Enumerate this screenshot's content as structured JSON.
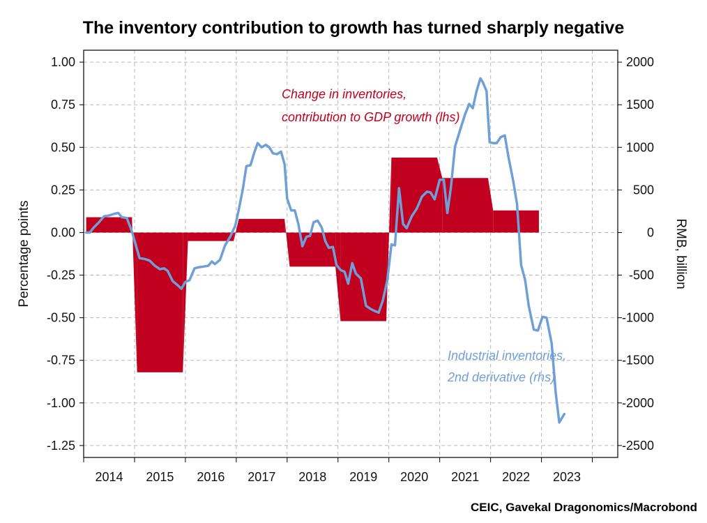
{
  "chart_data": {
    "type": "bar+line",
    "title": "The inventory contribution to growth has turned sharply negative",
    "source": "CEIC, Gavekal Dragonomics/Macrobond",
    "x_ticks": [
      "2014",
      "2015",
      "2016",
      "2017",
      "2018",
      "2019",
      "2020",
      "2021",
      "2022",
      "2023"
    ],
    "y_left": {
      "label": "Percentage points",
      "ylim": [
        -1.32,
        1.07
      ],
      "ticks": [
        1.0,
        0.75,
        0.5,
        0.25,
        0.0,
        -0.25,
        -0.5,
        -0.75,
        -1.0,
        -1.25
      ],
      "tick_labels": [
        "1.00",
        "0.75",
        "0.50",
        "0.25",
        "0.00",
        "-0.25",
        "-0.50",
        "-0.75",
        "-1.00",
        "-1.25"
      ]
    },
    "y_right": {
      "label": "RMB, billion",
      "ylim": [
        -2640,
        2140
      ],
      "ticks": [
        2000,
        1500,
        1000,
        500,
        0,
        -500,
        -1000,
        -1500,
        -2000,
        -2500
      ],
      "tick_labels": [
        "2000",
        "1500",
        "1000",
        "500",
        "0",
        "-500",
        "-1000",
        "-1500",
        "-2000",
        "-2500"
      ]
    },
    "x_domain": [
      2013.0,
      2023.5
    ],
    "series": [
      {
        "name": "Change in inventories, contribution to GDP growth (lhs)",
        "label_lines": [
          "Change in inventories,",
          "contribution to GDP growth (lhs)"
        ],
        "kind": "area",
        "axis": "left",
        "color": "#c0001e",
        "points": [
          [
            2013.05,
            0.09
          ],
          [
            2013.95,
            0.09
          ],
          [
            2014.05,
            -0.82
          ],
          [
            2014.95,
            -0.82
          ],
          [
            2015.05,
            -0.05
          ],
          [
            2015.95,
            -0.05
          ],
          [
            2016.05,
            0.08
          ],
          [
            2016.95,
            0.08
          ],
          [
            2017.05,
            -0.2
          ],
          [
            2017.95,
            -0.2
          ],
          [
            2018.05,
            -0.52
          ],
          [
            2018.95,
            -0.52
          ],
          [
            2019.05,
            0.44
          ],
          [
            2019.95,
            0.44
          ],
          [
            2020.05,
            0.32
          ],
          [
            2020.95,
            0.32
          ],
          [
            2021.05,
            0.13
          ],
          [
            2021.95,
            0.13
          ]
        ]
      },
      {
        "name": "Industrial inventories, 2nd derivative (rhs)",
        "label_lines": [
          "Industrial inventories,",
          "2nd derivative (rhs)"
        ],
        "kind": "line",
        "axis": "right",
        "color": "#6f9fd6",
        "points": [
          [
            2013.05,
            0
          ],
          [
            2013.12,
            0
          ],
          [
            2013.2,
            60
          ],
          [
            2013.3,
            120
          ],
          [
            2013.4,
            190
          ],
          [
            2013.5,
            200
          ],
          [
            2013.6,
            220
          ],
          [
            2013.68,
            230
          ],
          [
            2013.75,
            180
          ],
          [
            2013.85,
            170
          ],
          [
            2013.95,
            10
          ],
          [
            2014.05,
            -200
          ],
          [
            2014.1,
            -300
          ],
          [
            2014.2,
            -310
          ],
          [
            2014.3,
            -330
          ],
          [
            2014.4,
            -390
          ],
          [
            2014.5,
            -430
          ],
          [
            2014.58,
            -420
          ],
          [
            2014.65,
            -450
          ],
          [
            2014.75,
            -570
          ],
          [
            2014.85,
            -620
          ],
          [
            2014.92,
            -660
          ],
          [
            2015.0,
            -580
          ],
          [
            2015.08,
            -560
          ],
          [
            2015.18,
            -420
          ],
          [
            2015.25,
            -410
          ],
          [
            2015.35,
            -400
          ],
          [
            2015.45,
            -390
          ],
          [
            2015.52,
            -340
          ],
          [
            2015.58,
            -370
          ],
          [
            2015.68,
            -320
          ],
          [
            2015.78,
            -150
          ],
          [
            2015.88,
            -50
          ],
          [
            2015.98,
            80
          ],
          [
            2016.05,
            270
          ],
          [
            2016.13,
            510
          ],
          [
            2016.2,
            780
          ],
          [
            2016.28,
            790
          ],
          [
            2016.35,
            930
          ],
          [
            2016.42,
            1050
          ],
          [
            2016.5,
            1000
          ],
          [
            2016.58,
            1030
          ],
          [
            2016.65,
            1000
          ],
          [
            2016.72,
            930
          ],
          [
            2016.8,
            920
          ],
          [
            2016.88,
            950
          ],
          [
            2016.95,
            800
          ],
          [
            2017.0,
            400
          ],
          [
            2017.08,
            260
          ],
          [
            2017.15,
            260
          ],
          [
            2017.22,
            100
          ],
          [
            2017.3,
            -160
          ],
          [
            2017.38,
            -50
          ],
          [
            2017.45,
            -40
          ],
          [
            2017.52,
            120
          ],
          [
            2017.6,
            140
          ],
          [
            2017.68,
            60
          ],
          [
            2017.75,
            -100
          ],
          [
            2017.82,
            -180
          ],
          [
            2017.9,
            -170
          ],
          [
            2017.97,
            -380
          ],
          [
            2018.05,
            -440
          ],
          [
            2018.13,
            -460
          ],
          [
            2018.2,
            -600
          ],
          [
            2018.28,
            -360
          ],
          [
            2018.35,
            -480
          ],
          [
            2018.45,
            -540
          ],
          [
            2018.55,
            -860
          ],
          [
            2018.65,
            -900
          ],
          [
            2018.72,
            -920
          ],
          [
            2018.8,
            -940
          ],
          [
            2018.88,
            -800
          ],
          [
            2018.97,
            -560
          ],
          [
            2019.05,
            -140
          ],
          [
            2019.12,
            -150
          ],
          [
            2019.2,
            520
          ],
          [
            2019.28,
            100
          ],
          [
            2019.35,
            50
          ],
          [
            2019.45,
            190
          ],
          [
            2019.55,
            280
          ],
          [
            2019.65,
            420
          ],
          [
            2019.75,
            480
          ],
          [
            2019.82,
            470
          ],
          [
            2019.9,
            390
          ],
          [
            2020.0,
            620
          ],
          [
            2020.08,
            620
          ],
          [
            2020.15,
            230
          ],
          [
            2020.22,
            530
          ],
          [
            2020.3,
            1010
          ],
          [
            2020.4,
            1200
          ],
          [
            2020.5,
            1390
          ],
          [
            2020.58,
            1510
          ],
          [
            2020.65,
            1460
          ],
          [
            2020.72,
            1650
          ],
          [
            2020.8,
            1810
          ],
          [
            2020.85,
            1760
          ],
          [
            2020.92,
            1660
          ],
          [
            2020.98,
            1060
          ],
          [
            2021.05,
            1050
          ],
          [
            2021.12,
            1050
          ],
          [
            2021.2,
            1120
          ],
          [
            2021.28,
            1140
          ],
          [
            2021.35,
            890
          ],
          [
            2021.45,
            590
          ],
          [
            2021.52,
            330
          ],
          [
            2021.6,
            -380
          ],
          [
            2021.68,
            -560
          ],
          [
            2021.75,
            -860
          ],
          [
            2021.85,
            -1140
          ],
          [
            2021.93,
            -1150
          ],
          [
            2022.02,
            -990
          ],
          [
            2022.1,
            -1000
          ],
          [
            2022.2,
            -1300
          ],
          [
            2022.28,
            -1880
          ],
          [
            2022.35,
            -2230
          ],
          [
            2022.45,
            -2130
          ]
        ]
      }
    ]
  }
}
